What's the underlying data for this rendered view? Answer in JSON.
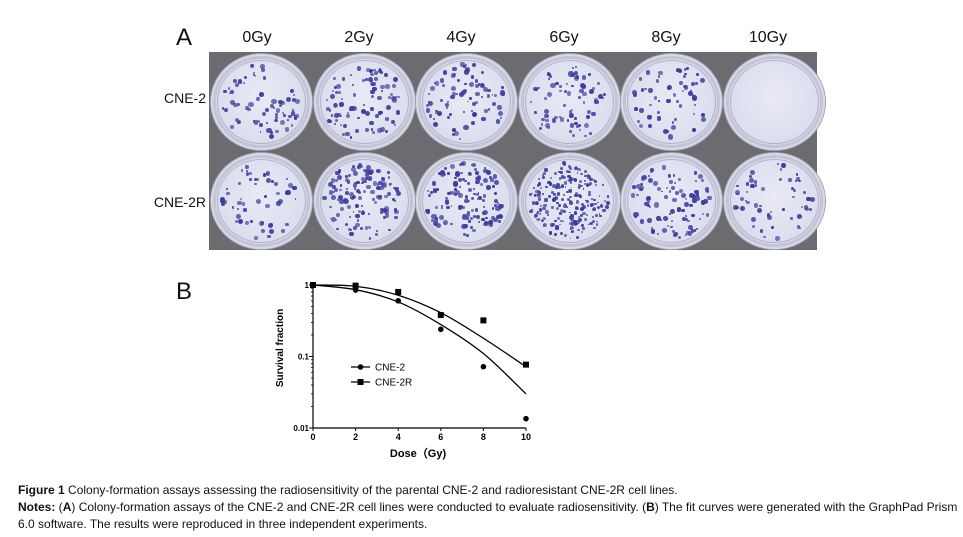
{
  "panel_a": {
    "label": "A",
    "doses": [
      "0Gy",
      "2Gy",
      "4Gy",
      "6Gy",
      "8Gy",
      "10Gy"
    ],
    "rows": [
      {
        "label": "CNE-2",
        "densities": [
          70,
          90,
          80,
          75,
          60,
          0
        ]
      },
      {
        "label": "CNE-2R",
        "densities": [
          55,
          130,
          140,
          230,
          100,
          55
        ]
      }
    ]
  },
  "panel_b": {
    "label": "B",
    "chart_data": {
      "type": "scatter",
      "xlabel": "Dose（Gy)",
      "ylabel": "Survival fraction",
      "x_ticks": [
        "0",
        "2",
        "4",
        "6",
        "8",
        "10"
      ],
      "y_ticks": [
        "0.01",
        "0.1",
        "1"
      ],
      "xlim": [
        0,
        10
      ],
      "ylim": [
        0.01,
        1
      ],
      "y_scale": "log",
      "legend_position": "middle-left",
      "series": [
        {
          "name": "CNE-2",
          "marker": "circle",
          "x": [
            0,
            2,
            4,
            6,
            8,
            10
          ],
          "y": [
            1.0,
            0.85,
            0.6,
            0.24,
            0.072,
            0.0135
          ],
          "fit_y": [
            1.0,
            0.86,
            0.58,
            0.28,
            0.11,
            0.03
          ]
        },
        {
          "name": "CNE-2R",
          "marker": "square",
          "x": [
            0,
            2,
            4,
            6,
            8,
            10
          ],
          "y": [
            1.0,
            0.98,
            0.8,
            0.38,
            0.32,
            0.077
          ],
          "fit_y": [
            1.0,
            0.96,
            0.72,
            0.41,
            0.18,
            0.072
          ]
        }
      ]
    }
  },
  "caption": {
    "figure_label": "Figure 1",
    "figure_text": " Colony-formation assays assessing the radiosensitivity of the parental CNE-2 and radioresistant CNE-2R cell lines.",
    "notes_label": "Notes:",
    "notes_a_open": " (",
    "notes_a_letter": "A",
    "notes_a_text": ") Colony-formation assays of the CNE-2 and CNE-2R cell lines were conducted to evaluate radiosensitivity. (",
    "notes_b_letter": "B",
    "notes_b_text": ") The fit curves were generated with the GraphPad Prism 6.0 software. The results were reproduced in three independent experiments."
  }
}
